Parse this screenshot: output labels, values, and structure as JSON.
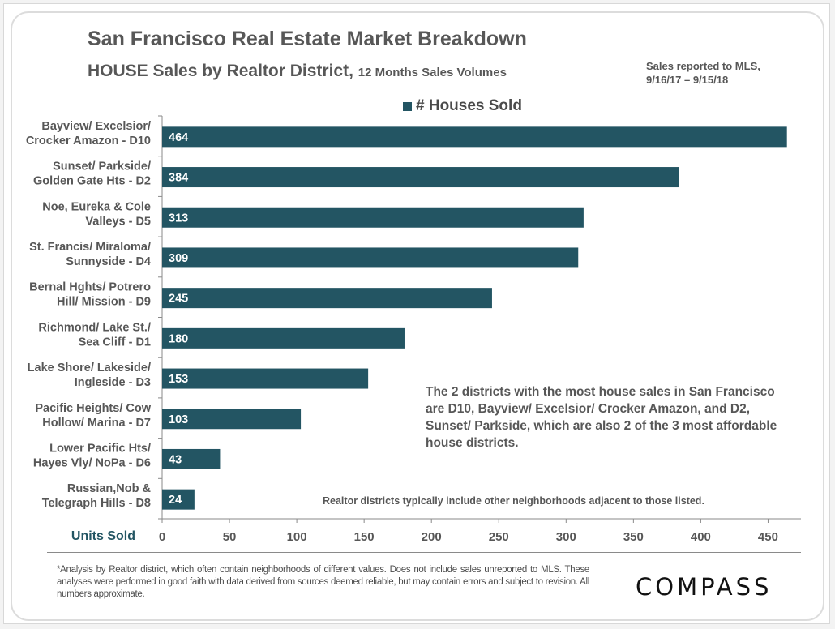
{
  "header": {
    "title": "San Francisco Real Estate Market Breakdown",
    "subtitle_main": "HOUSE Sales by Realtor District,",
    "subtitle_small": "12 Months Sales Volumes",
    "sales_note_line1": "Sales reported to MLS,",
    "sales_note_line2": "9/16/17 – 9/15/18"
  },
  "annotation": "The 2 districts with the most house sales in San Francisco are D10, Bayview/ Excelsior/ Crocker Amazon, and D2, Sunset/ Parkside, which are also 2 of the 3 most affordable house districts.",
  "note": "Realtor districts typically include other neighborhoods adjacent to those listed.",
  "footnote": "*Analysis by Realtor district, which often contain neighborhoods of different values. Does not include sales unreported to MLS. These analyses were performed in good faith with data derived from sources deemed reliable, but may contain errors and subject to revision. All numbers approximate.",
  "logo": "COMPASS",
  "colors": {
    "bar": "#235563",
    "axis": "#8a8a8a",
    "text": "#575757"
  },
  "chart_data": {
    "type": "bar",
    "orientation": "horizontal",
    "title": "San Francisco Real Estate Market Breakdown",
    "subtitle": "HOUSE Sales by Realtor District, 12 Months Sales Volumes",
    "legend": [
      "# Houses Sold"
    ],
    "legend_position": "top-center",
    "categories": [
      [
        "Bayview/ Excelsior/",
        "Crocker Amazon - D10"
      ],
      [
        "Sunset/ Parkside/",
        "Golden Gate Hts - D2"
      ],
      [
        "Noe, Eureka & Cole",
        "Valleys - D5"
      ],
      [
        "St. Francis/  Miraloma/",
        "Sunnyside - D4"
      ],
      [
        "Bernal Hghts/ Potrero",
        "Hill/ Mission - D9"
      ],
      [
        "Richmond/ Lake St./",
        "Sea Cliff - D1"
      ],
      [
        "Lake Shore/ Lakeside/",
        "Ingleside - D3"
      ],
      [
        "Pacific Heights/ Cow",
        "Hollow/ Marina - D7"
      ],
      [
        "Lower Pacific Hts/",
        "Hayes Vly/ NoPa - D6"
      ],
      [
        "Russian,Nob &",
        "Telegraph Hills - D8"
      ]
    ],
    "series": [
      {
        "name": "# Houses Sold",
        "values": [
          464,
          384,
          313,
          309,
          245,
          180,
          153,
          103,
          43,
          24
        ]
      }
    ],
    "xlabel": "Units Sold",
    "ylabel": "",
    "xlim": [
      0,
      475
    ],
    "xticks": [
      0,
      50,
      100,
      150,
      200,
      250,
      300,
      350,
      400,
      450
    ],
    "grid": false,
    "data_labels": true
  }
}
